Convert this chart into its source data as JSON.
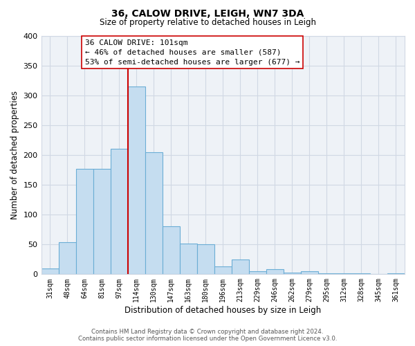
{
  "title": "36, CALOW DRIVE, LEIGH, WN7 3DA",
  "subtitle": "Size of property relative to detached houses in Leigh",
  "xlabel": "Distribution of detached houses by size in Leigh",
  "ylabel": "Number of detached properties",
  "categories": [
    "31sqm",
    "48sqm",
    "64sqm",
    "81sqm",
    "97sqm",
    "114sqm",
    "130sqm",
    "147sqm",
    "163sqm",
    "180sqm",
    "196sqm",
    "213sqm",
    "229sqm",
    "246sqm",
    "262sqm",
    "279sqm",
    "295sqm",
    "312sqm",
    "328sqm",
    "345sqm",
    "361sqm"
  ],
  "values": [
    10,
    54,
    177,
    177,
    210,
    315,
    204,
    81,
    51,
    50,
    13,
    25,
    5,
    8,
    3,
    5,
    2,
    1,
    1,
    0,
    2
  ],
  "bar_color": "#c5ddf0",
  "bar_edge_color": "#6aadd5",
  "vline_x_index": 5,
  "vline_color": "#cc0000",
  "annotation_title": "36 CALOW DRIVE: 101sqm",
  "annotation_line1": "← 46% of detached houses are smaller (587)",
  "annotation_line2": "53% of semi-detached houses are larger (677) →",
  "ylim": [
    0,
    400
  ],
  "yticks": [
    0,
    50,
    100,
    150,
    200,
    250,
    300,
    350,
    400
  ],
  "grid_color": "#d0d8e4",
  "bg_color": "#eef2f7",
  "footer1": "Contains HM Land Registry data © Crown copyright and database right 2024.",
  "footer2": "Contains public sector information licensed under the Open Government Licence v3.0."
}
